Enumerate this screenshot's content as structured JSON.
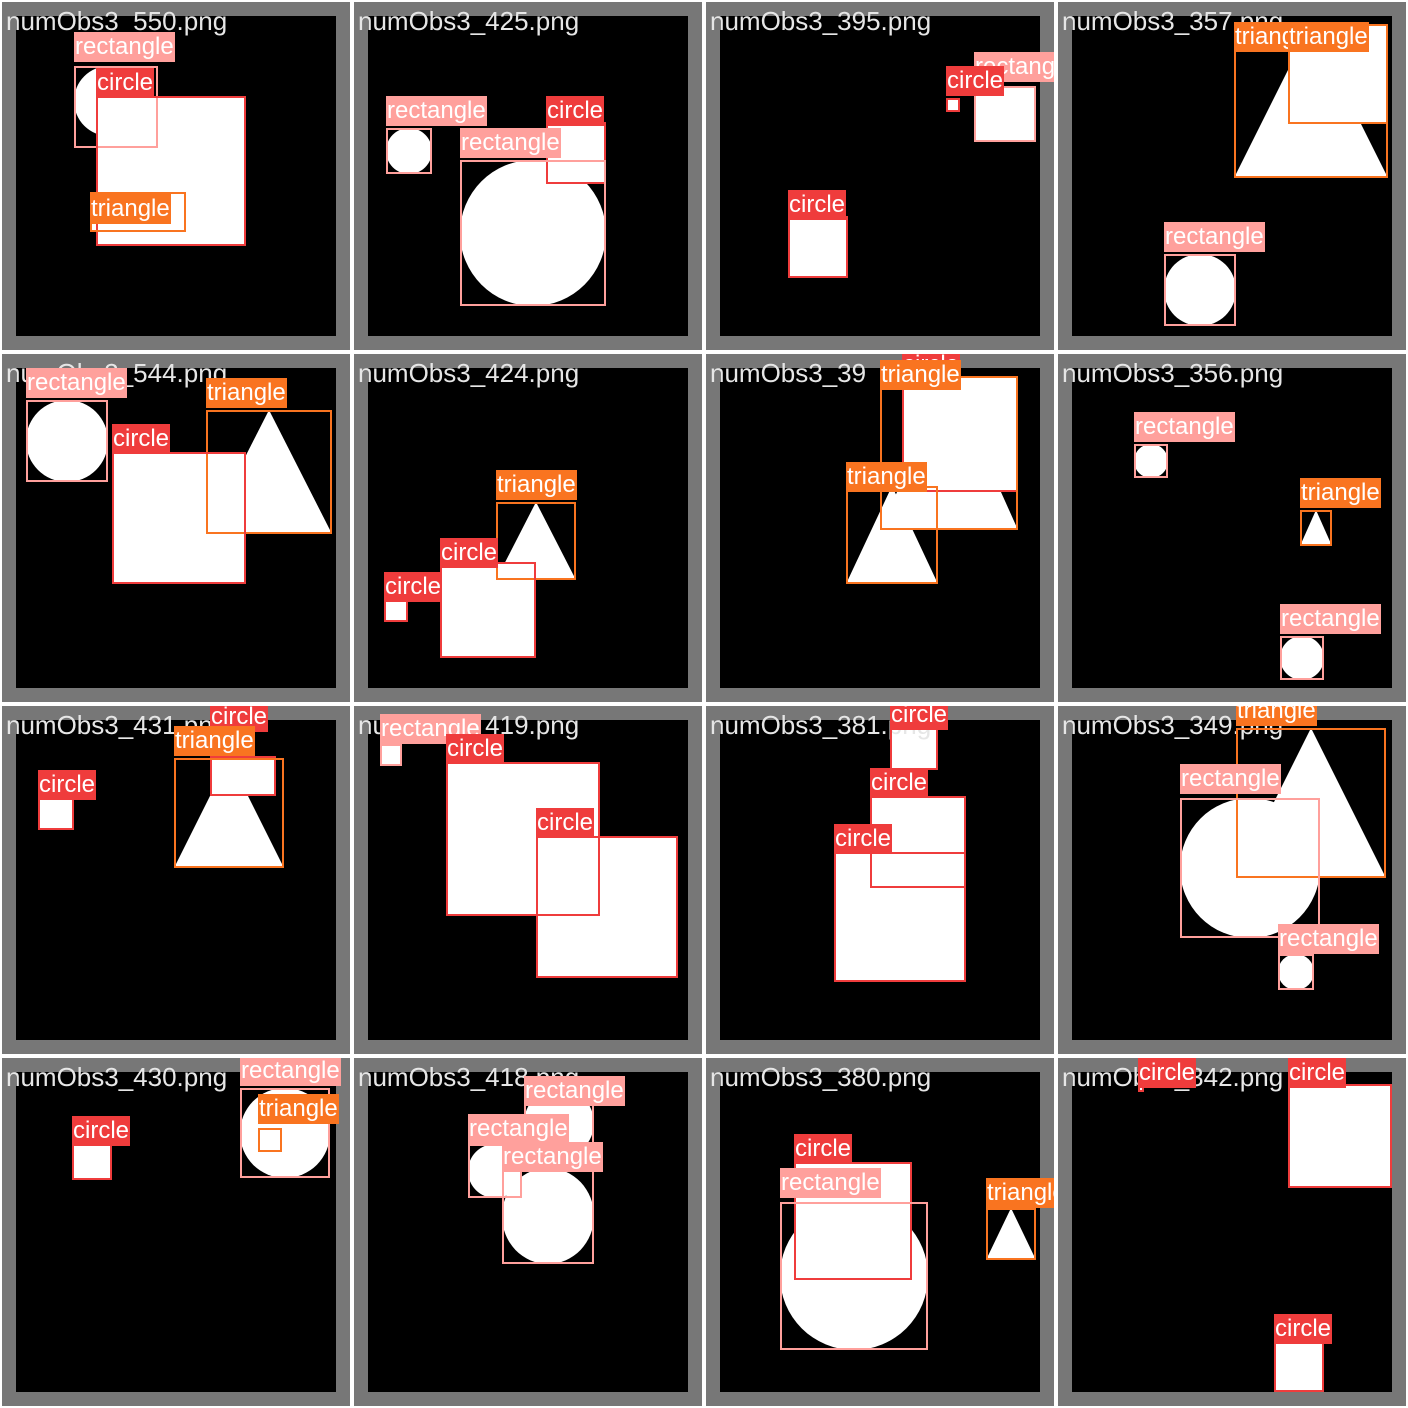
{
  "colors": {
    "rectangle": "#ffa09c",
    "circle": "#ef3c3c",
    "triangle": "#f97420",
    "tile_border": "#777777",
    "canvas": "#000000",
    "shape_fill": "#ffffff"
  },
  "tiles": [
    {
      "filename": "numObs3_550.png",
      "labels": [
        "rectangle",
        "circle",
        "triangle"
      ]
    },
    {
      "filename": "numObs3_425.png",
      "labels": [
        "rectangle",
        "circle",
        "rectangle"
      ]
    },
    {
      "filename": "numObs3_395.png",
      "labels": [
        "circle",
        "rectangle",
        "circle"
      ]
    },
    {
      "filename": "numObs3_357.png",
      "labels": [
        "rectangle",
        "triangle",
        "triangle"
      ]
    },
    {
      "filename": "numObs3_544.png",
      "labels": [
        "rectangle",
        "triangle",
        "circle"
      ]
    },
    {
      "filename": "numObs3_424.png",
      "labels": [
        "triangle",
        "circle",
        "circle"
      ]
    },
    {
      "filename": "numObs3_39",
      "labels": [
        "circle",
        "triangle",
        "triangle"
      ]
    },
    {
      "filename": "numObs3_356.png",
      "labels": [
        "rectangle",
        "triangle",
        "rectangle"
      ]
    },
    {
      "filename": "numObs3_431.png",
      "labels": [
        "circle",
        "circle",
        "triangle"
      ]
    },
    {
      "filename": "numObs3_419.png",
      "labels": [
        "rectangle",
        "circle",
        "circle"
      ]
    },
    {
      "filename": "numObs3_381.png",
      "labels": [
        "circle",
        "circle",
        "circle"
      ]
    },
    {
      "filename": "numObs3_349.png",
      "labels": [
        "triangle",
        "rectangle",
        "rectangle"
      ]
    },
    {
      "filename": "numObs3_430.png",
      "labels": [
        "rectangle",
        "triangle",
        "circle"
      ]
    },
    {
      "filename": "numObs3_418.png",
      "labels": [
        "rectangle",
        "rectangle",
        "rectangle"
      ]
    },
    {
      "filename": "numObs3_380.png",
      "labels": [
        "circle",
        "rectangle",
        "triangle"
      ]
    },
    {
      "filename": "numObs3_342.png",
      "labels": [
        "circle",
        "circle",
        "circle"
      ]
    }
  ]
}
